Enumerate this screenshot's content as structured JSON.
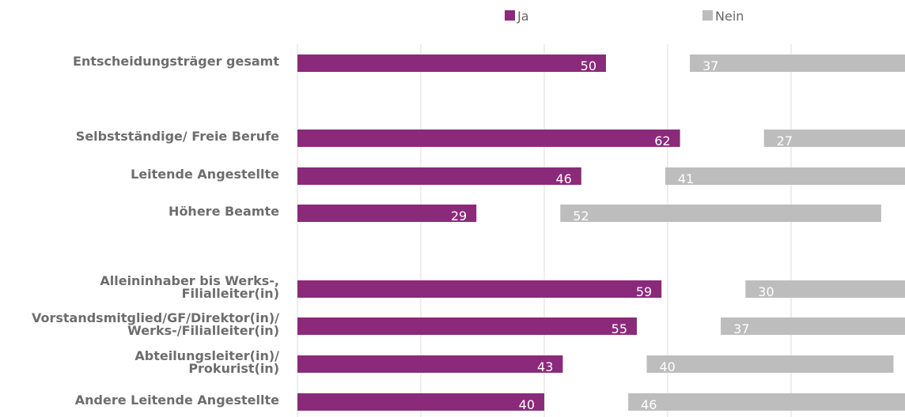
{
  "chart_data": {
    "type": "bar",
    "orientation": "horizontal",
    "grid": true,
    "legend_position": "top",
    "categories": [
      "Entscheidungsträger gesamt",
      "Selbstständige/  Freie Berufe",
      "Leitende Angestellte",
      "Höhere Beamte",
      "Alleininhaber bis Werks-, Filialleiter(in)",
      "Vorstandsmitglied/GF/Direktor(in)/ Werks-/Filialleiter(in)",
      "Abteilungsleiter(in)/ Prokurist(in)",
      "Andere Leitende Angestellte"
    ],
    "category_lines": [
      [
        "Entscheidungsträger gesamt"
      ],
      [
        "Selbstständige/  Freie Berufe"
      ],
      [
        "Leitende Angestellte"
      ],
      [
        "Höhere Beamte"
      ],
      [
        "Alleininhaber bis Werks-,",
        "Filialleiter(in)"
      ],
      [
        "Vorstandsmitglied/GF/Direktor(in)/",
        "Werks-/Filialleiter(in)"
      ],
      [
        "Abteilungsleiter(in)/",
        "Prokurist(in)"
      ],
      [
        "Andere Leitende Angestellte"
      ]
    ],
    "series": [
      {
        "name": "Ja",
        "color": "#8b2a7a",
        "values": [
          50,
          62,
          46,
          29,
          59,
          55,
          43,
          40
        ]
      },
      {
        "name": "Nein",
        "color": "#bdbdbd",
        "values": [
          37,
          27,
          41,
          52,
          30,
          37,
          40,
          46
        ]
      }
    ]
  }
}
